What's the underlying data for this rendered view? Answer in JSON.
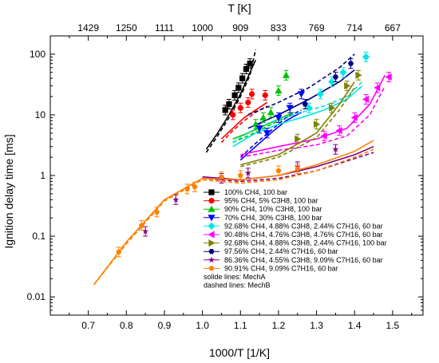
{
  "chart_data": {
    "type": "scatter",
    "xlabel": "1000/T [1/K]",
    "ylabel": "Ignition delay time [ms]",
    "top_axis_label": "T [K]",
    "xlim": [
      0.6,
      1.58
    ],
    "ylim": [
      0.005,
      200
    ],
    "y_scale": "log",
    "x_ticks": [
      0.7,
      0.8,
      0.9,
      1.0,
      1.1,
      1.2,
      1.3,
      1.4,
      1.5
    ],
    "x_tick_labels": [
      "0.7",
      "0.8",
      "0.9",
      "1.0",
      "1.1",
      "1.2",
      "1.3",
      "1.4",
      "1.5"
    ],
    "y_ticks": [
      0.01,
      0.1,
      1,
      10,
      100
    ],
    "y_tick_labels": [
      "0.01",
      "0.1",
      "1",
      "10",
      "100"
    ],
    "top_ticks_at_x": [
      0.7,
      0.8,
      0.9,
      1.0,
      1.1,
      1.2,
      1.3,
      1.4,
      1.5
    ],
    "top_tick_labels": [
      "1429",
      "1250",
      "1111",
      "1000",
      "909",
      "833",
      "769",
      "714",
      "667"
    ],
    "legend_position": "bottom-center",
    "legend_notes": [
      "solide lines: MechA",
      "dashed lines: MechB"
    ],
    "series": [
      {
        "name": "100% CH4, 100 bar",
        "color": "#000000",
        "marker": "square",
        "points": [
          [
            1.06,
            12
          ],
          [
            1.07,
            15
          ],
          [
            1.085,
            21
          ],
          [
            1.095,
            28
          ],
          [
            1.105,
            40
          ],
          [
            1.115,
            57
          ],
          [
            1.125,
            70
          ]
        ],
        "mechA": [
          [
            1.01,
            2.7
          ],
          [
            1.04,
            5
          ],
          [
            1.07,
            10
          ],
          [
            1.1,
            22
          ],
          [
            1.125,
            50
          ],
          [
            1.14,
            80
          ]
        ],
        "mechB": [
          [
            1.01,
            2.4
          ],
          [
            1.04,
            4.5
          ],
          [
            1.07,
            9
          ],
          [
            1.1,
            20
          ],
          [
            1.125,
            45
          ],
          [
            1.14,
            120
          ]
        ]
      },
      {
        "name": "95% CH4, 5% C3H8, 100 bar",
        "color": "#ff0000",
        "marker": "circle",
        "points": [
          [
            1.08,
            10
          ],
          [
            1.1,
            13
          ],
          [
            1.12,
            16
          ],
          [
            1.13,
            22
          ],
          [
            1.165,
            21
          ]
        ],
        "mechA": [
          [
            1.05,
            4
          ],
          [
            1.08,
            6
          ],
          [
            1.11,
            9
          ],
          [
            1.14,
            12
          ],
          [
            1.17,
            16
          ]
        ],
        "mechB": [
          [
            1.05,
            3.5
          ],
          [
            1.08,
            5.5
          ],
          [
            1.11,
            8
          ],
          [
            1.14,
            11
          ],
          [
            1.17,
            14
          ]
        ]
      },
      {
        "name": "90% CH4, 10% C3H8, 100 bar",
        "color": "#00c000",
        "marker": "triangle-up",
        "points": [
          [
            1.14,
            7
          ],
          [
            1.16,
            9
          ],
          [
            1.18,
            11
          ],
          [
            1.2,
            25
          ],
          [
            1.22,
            45
          ]
        ],
        "mechA": [
          [
            1.08,
            4
          ],
          [
            1.12,
            5
          ],
          [
            1.16,
            6.5
          ],
          [
            1.2,
            8.5
          ],
          [
            1.24,
            11
          ]
        ],
        "mechB": [
          [
            1.08,
            3.5
          ],
          [
            1.12,
            4.5
          ],
          [
            1.16,
            6
          ],
          [
            1.2,
            8
          ],
          [
            1.24,
            10
          ]
        ]
      },
      {
        "name": "70% CH4, 30% C3H8, 100 bar",
        "color": "#0000ff",
        "marker": "triangle-down",
        "points": [
          [
            1.15,
            6
          ],
          [
            1.17,
            5
          ],
          [
            1.2,
            9
          ],
          [
            1.23,
            13
          ],
          [
            1.26,
            22
          ]
        ],
        "mechA": [
          [
            1.1,
            1.8
          ],
          [
            1.14,
            3
          ],
          [
            1.18,
            5
          ],
          [
            1.22,
            8
          ],
          [
            1.26,
            11
          ]
        ],
        "mechB": [
          [
            1.1,
            2
          ],
          [
            1.14,
            3.4
          ],
          [
            1.18,
            5.5
          ],
          [
            1.22,
            9
          ],
          [
            1.26,
            12
          ]
        ]
      },
      {
        "name": "92.68% CH4, 4.88% C3H8, 2.44% C7H16, 60 bar",
        "color": "#00e5e5",
        "marker": "diamond",
        "points": [
          [
            1.28,
            13
          ],
          [
            1.31,
            22
          ],
          [
            1.34,
            35
          ],
          [
            1.37,
            50
          ],
          [
            1.43,
            90
          ]
        ],
        "mechA": [
          [
            1.08,
            3
          ],
          [
            1.14,
            5
          ],
          [
            1.2,
            7
          ],
          [
            1.26,
            9
          ],
          [
            1.32,
            12
          ],
          [
            1.38,
            18
          ],
          [
            1.42,
            30
          ]
        ],
        "mechB": [
          [
            1.08,
            3.5
          ],
          [
            1.14,
            6
          ],
          [
            1.2,
            8.5
          ],
          [
            1.26,
            11
          ],
          [
            1.32,
            14
          ],
          [
            1.38,
            20
          ],
          [
            1.42,
            35
          ]
        ]
      },
      {
        "name": "90.48% CH4, 4.76% C3H8, 4.76% C7H16, 60 bar",
        "color": "#ff00ff",
        "marker": "triangle-left",
        "points": [
          [
            1.32,
            4.5
          ],
          [
            1.36,
            5.5
          ],
          [
            1.4,
            9
          ],
          [
            1.43,
            18
          ],
          [
            1.46,
            28
          ],
          [
            1.49,
            42
          ]
        ],
        "mechA": [
          [
            1.1,
            2.2
          ],
          [
            1.2,
            3
          ],
          [
            1.3,
            4
          ],
          [
            1.38,
            6
          ],
          [
            1.44,
            15
          ],
          [
            1.48,
            45
          ]
        ],
        "mechB": [
          [
            1.1,
            2
          ],
          [
            1.2,
            2.6
          ],
          [
            1.3,
            3.2
          ],
          [
            1.38,
            4.5
          ],
          [
            1.44,
            10
          ],
          [
            1.48,
            30
          ]
        ]
      },
      {
        "name": "92.68% CH4, 4.88% C3H8, 2.44% C7H16, 100 bar",
        "color": "#808000",
        "marker": "triangle-right",
        "points": [
          [
            1.25,
            4
          ],
          [
            1.3,
            7
          ],
          [
            1.34,
            13
          ],
          [
            1.38,
            30
          ],
          [
            1.41,
            45
          ]
        ],
        "mechA": [
          [
            1.1,
            1.5
          ],
          [
            1.2,
            2.2
          ],
          [
            1.3,
            5
          ],
          [
            1.36,
            15
          ],
          [
            1.4,
            35
          ]
        ],
        "mechB": [
          [
            1.1,
            1.4
          ],
          [
            1.2,
            2
          ],
          [
            1.3,
            4.2
          ],
          [
            1.36,
            12
          ],
          [
            1.4,
            28
          ]
        ]
      },
      {
        "name": "97.56% CH4, 2.44% C7H16, 60 bar",
        "color": "#000080",
        "marker": "hexagon",
        "points": [
          [
            1.27,
            15
          ],
          [
            1.35,
            42
          ],
          [
            1.39,
            70
          ]
        ],
        "mechA": [
          [
            1.12,
            6
          ],
          [
            1.2,
            10
          ],
          [
            1.28,
            18
          ],
          [
            1.36,
            35
          ],
          [
            1.4,
            55
          ]
        ],
        "mechB": [
          [
            1.12,
            10
          ],
          [
            1.2,
            16
          ],
          [
            1.28,
            28
          ],
          [
            1.36,
            60
          ],
          [
            1.4,
            100
          ]
        ]
      },
      {
        "name": "86.36% CH4, 4.55% C3H8, 9.09% C7H16, 60 bar",
        "color": "#800080",
        "marker": "star",
        "points": [
          [
            0.85,
            0.12
          ],
          [
            0.93,
            0.4
          ],
          [
            1.05,
            0.9
          ],
          [
            1.12,
            1.1
          ],
          [
            1.25,
            1.4
          ],
          [
            1.35,
            2.7
          ]
        ],
        "mechA": [
          [
            1.0,
            0.95
          ],
          [
            1.1,
            0.85
          ],
          [
            1.2,
            1.0
          ],
          [
            1.3,
            1.4
          ],
          [
            1.4,
            2.2
          ],
          [
            1.45,
            3
          ]
        ],
        "mechB": [
          [
            1.0,
            0.9
          ],
          [
            1.1,
            0.8
          ],
          [
            1.2,
            0.9
          ],
          [
            1.3,
            1.2
          ],
          [
            1.4,
            1.9
          ],
          [
            1.45,
            2.4
          ]
        ]
      },
      {
        "name": "90.91% CH4, 9.09% C7H16, 60 bar",
        "color": "#ff8000",
        "marker": "pentagon",
        "points": [
          [
            0.78,
            0.055
          ],
          [
            0.84,
            0.15
          ],
          [
            0.88,
            0.25
          ],
          [
            0.96,
            0.6
          ],
          [
            0.98,
            0.65
          ],
          [
            1.05,
            0.95
          ],
          [
            1.1,
            1.0
          ],
          [
            1.2,
            1.2
          ],
          [
            1.25,
            1.3
          ]
        ],
        "mechA": [
          [
            0.715,
            0.016
          ],
          [
            0.8,
            0.08
          ],
          [
            0.9,
            0.4
          ],
          [
            1.0,
            0.9
          ],
          [
            1.1,
            0.85
          ],
          [
            1.2,
            1.0
          ],
          [
            1.3,
            1.5
          ],
          [
            1.4,
            2.5
          ],
          [
            1.45,
            3.8
          ]
        ],
        "mechB": [
          [
            0.715,
            0.016
          ],
          [
            0.8,
            0.075
          ],
          [
            0.9,
            0.38
          ],
          [
            1.0,
            0.85
          ],
          [
            1.1,
            0.75
          ],
          [
            1.2,
            0.85
          ],
          [
            1.3,
            1.2
          ],
          [
            1.4,
            2.0
          ],
          [
            1.45,
            2.7
          ]
        ]
      }
    ]
  }
}
